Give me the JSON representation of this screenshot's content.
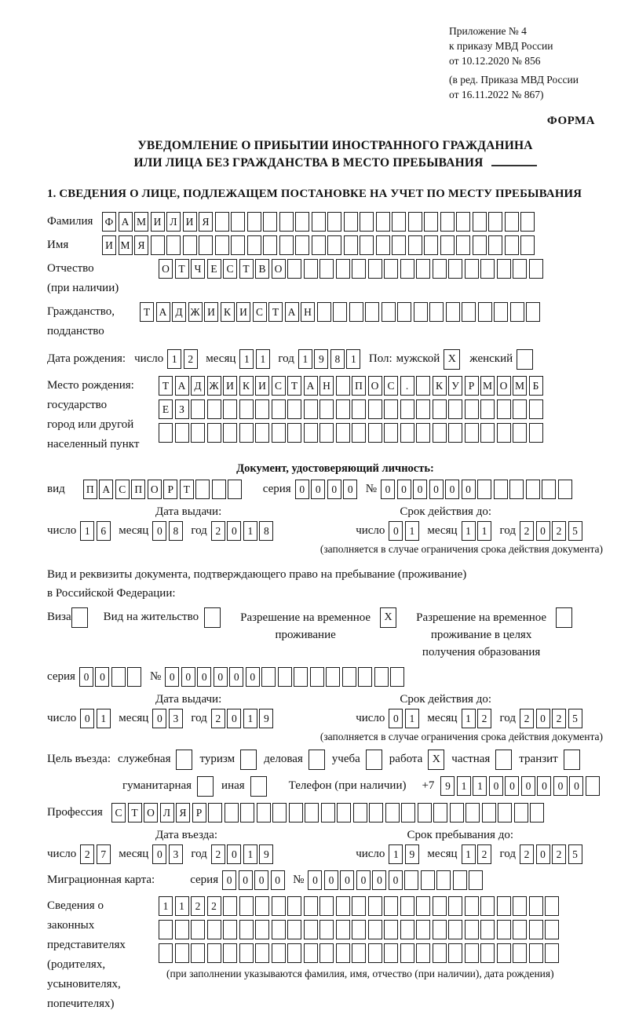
{
  "header": {
    "appendix": [
      "Приложение № 4",
      "к приказу МВД России",
      "от 10.12.2020 № 856"
    ],
    "edition": [
      "(в ред. Приказа МВД России",
      "от 16.11.2022 № 867)"
    ],
    "forma": "ФОРМА"
  },
  "title": {
    "line1": "УВЕДОМЛЕНИЕ О ПРИБЫТИИ ИНОСТРАННОГО ГРАЖДАНИНА",
    "line2": "ИЛИ ЛИЦА БЕЗ ГРАЖДАНСТВА В МЕСТО ПРЕБЫВАНИЯ"
  },
  "section1_heading": "1. СВЕДЕНИЯ О ЛИЦЕ, ПОДЛЕЖАЩЕМ ПОСТАНОВКЕ НА УЧЕТ ПО МЕСТУ ПРЕБЫВАНИЯ",
  "person": {
    "surname": {
      "label": "Фамилия",
      "cells": {
        "count": 27,
        "text": "ФАМИЛИЯ"
      }
    },
    "name": {
      "label": "Имя",
      "cells": {
        "count": 27,
        "text": "ИМЯ"
      }
    },
    "patronymic": {
      "label1": "Отчество",
      "label2": "(при наличии)",
      "cells": {
        "count": 24,
        "text": "ОТЧЕСТВО"
      }
    },
    "citizenship": {
      "label1": "Гражданство,",
      "label2": "подданство",
      "cells": {
        "count": 25,
        "text": "ТАДЖИКИСТАН"
      }
    },
    "birth_date": {
      "label": "Дата рождения:",
      "day_label": "число",
      "day": "12",
      "month_label": "месяц",
      "month": "11",
      "year_label": "год",
      "year": "1981"
    },
    "sex": {
      "label": "Пол:",
      "male_label": "мужской",
      "male_mark": "X",
      "female_label": "женский",
      "female_mark": ""
    },
    "birth_place": {
      "label1": "Место рождения:",
      "label2": "государство",
      "label3": "город или другой",
      "label4": "населенный пункт",
      "row1": {
        "count": 24,
        "text": "ТАДЖИКИСТАН ПОС. КУРМОМБ"
      },
      "row2": {
        "count": 24,
        "text": "ЕЗ"
      },
      "row3": {
        "count": 24,
        "text": ""
      }
    }
  },
  "identity_doc": {
    "heading": "Документ, удостоверяющий личность:",
    "kind_label": "вид",
    "kind_cells": {
      "count": 10,
      "text": "ПАСПОРТ"
    },
    "series_label": "серия",
    "series_cells": {
      "count": 4,
      "text": "0000"
    },
    "number_label": "№",
    "number_cells": {
      "count": 12,
      "text": "000000"
    },
    "issue_heading": "Дата выдачи:",
    "issue": {
      "day_label": "число",
      "day": "16",
      "month_label": "месяц",
      "month": "08",
      "year_label": "год",
      "year": "2018"
    },
    "valid_heading": "Срок действия до:",
    "valid": {
      "day_label": "число",
      "day": "01",
      "month_label": "месяц",
      "month": "11",
      "year_label": "год",
      "year": "2025"
    },
    "note": "(заполняется в случае ограничения срока действия документа)"
  },
  "residence_doc": {
    "intro1": "Вид и реквизиты документа, подтверждающего право на пребывание (проживание)",
    "intro2": "в Российской Федерации:",
    "options": [
      {
        "label": "Виза",
        "mark": ""
      },
      {
        "label": "Вид на жительство",
        "mark": ""
      },
      {
        "label": "Разрешение на временное проживание",
        "mark": "X"
      },
      {
        "label": "Разрешение на временное проживание в целях получения образования",
        "mark": ""
      }
    ],
    "series_label": "серия",
    "series_cells": {
      "count": 4,
      "text": "00"
    },
    "number_label": "№",
    "number_cells": {
      "count": 15,
      "text": "000000"
    },
    "issue_heading": "Дата выдачи:",
    "issue": {
      "day_label": "число",
      "day": "01",
      "month_label": "месяц",
      "month": "03",
      "year_label": "год",
      "year": "2019"
    },
    "valid_heading": "Срок действия до:",
    "valid": {
      "day_label": "число",
      "day": "01",
      "month_label": "месяц",
      "month": "12",
      "year_label": "год",
      "year": "2025"
    },
    "note": "(заполняется в случае ограничения срока действия документа)"
  },
  "entry": {
    "purpose_label": "Цель въезда:",
    "purposes_row1": [
      {
        "label": "служебная",
        "mark": ""
      },
      {
        "label": "туризм",
        "mark": ""
      },
      {
        "label": "деловая",
        "mark": ""
      },
      {
        "label": "учеба",
        "mark": ""
      },
      {
        "label": "работа",
        "mark": "X"
      },
      {
        "label": "частная",
        "mark": ""
      },
      {
        "label": "транзит",
        "mark": ""
      }
    ],
    "purposes_row2": [
      {
        "label": "гуманитарная",
        "mark": ""
      },
      {
        "label": "иная",
        "mark": ""
      }
    ],
    "phone_label": "Телефон (при наличии)",
    "phone_prefix": "+7",
    "phone_cells": {
      "count": 10,
      "text": "911000000"
    },
    "profession_label": "Профессия",
    "profession_cells": {
      "count": 27,
      "text": "СТОЛЯР"
    },
    "entry_heading": "Дата въезда:",
    "entry_date": {
      "day_label": "число",
      "day": "27",
      "month_label": "месяц",
      "month": "03",
      "year_label": "год",
      "year": "2019"
    },
    "stay_heading": "Срок пребывания до:",
    "stay_until": {
      "day_label": "число",
      "day": "19",
      "month_label": "месяц",
      "month": "12",
      "year_label": "год",
      "year": "2025"
    },
    "migration_label": "Миграционная карта:",
    "migration_series_label": "серия",
    "migration_series_cells": {
      "count": 4,
      "text": "0000"
    },
    "migration_number_label": "№",
    "migration_number_cells": {
      "count": 11,
      "text": "000000"
    }
  },
  "representatives": {
    "label1": "Сведения о",
    "label2": "законных",
    "label3": "представителях",
    "label4": "(родителях,",
    "label5": "усыновителях,",
    "label6": "попечителях)",
    "row1": {
      "count": 25,
      "text": "1122"
    },
    "row2": {
      "count": 25,
      "text": ""
    },
    "row3": {
      "count": 25,
      "text": ""
    },
    "note": "(при заполнении указываются фамилия, имя, отчество (при наличии), дата рождения)"
  }
}
